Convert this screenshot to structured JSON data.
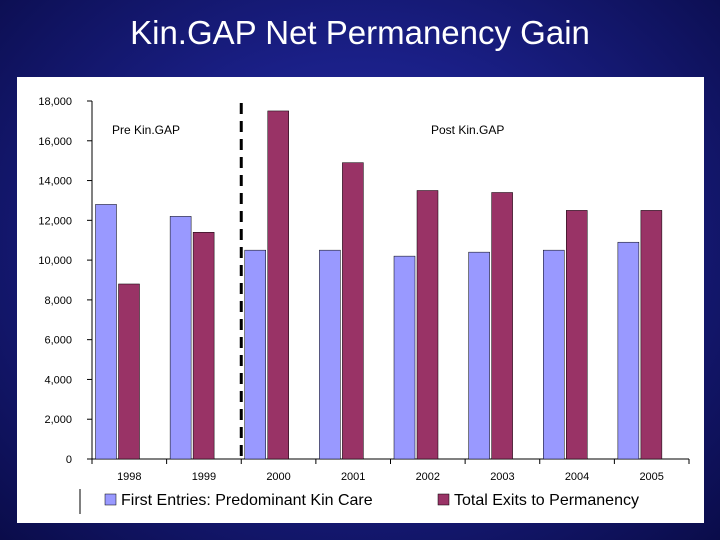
{
  "slide": {
    "title": "Kin.GAP Net Permanency Gain"
  },
  "chart_data": {
    "type": "bar",
    "title": "",
    "xlabel": "",
    "ylabel": "",
    "categories": [
      "1998",
      "1999",
      "2000",
      "2001",
      "2002",
      "2003",
      "2004",
      "2005"
    ],
    "series": [
      {
        "name": "First Entries: Predominant Kin Care",
        "values": [
          12800,
          12200,
          10500,
          10500,
          10200,
          10400,
          10500,
          10900
        ],
        "color": "#9999ff"
      },
      {
        "name": "Total Exits to Permanency",
        "values": [
          8800,
          11400,
          17500,
          14900,
          13500,
          13400,
          12500,
          12500
        ],
        "color": "#993366"
      }
    ],
    "ylim": [
      0,
      18000
    ],
    "yticks": [
      "0",
      "2,000",
      "4,000",
      "6,000",
      "8,000",
      "10,000",
      "12,000",
      "14,000",
      "16,000",
      "18,000"
    ],
    "grid": false,
    "legend_position": "bottom",
    "annotations": {
      "pre": "Pre Kin.GAP",
      "post": "Post Kin.GAP"
    },
    "divider_after_category": "1999"
  }
}
